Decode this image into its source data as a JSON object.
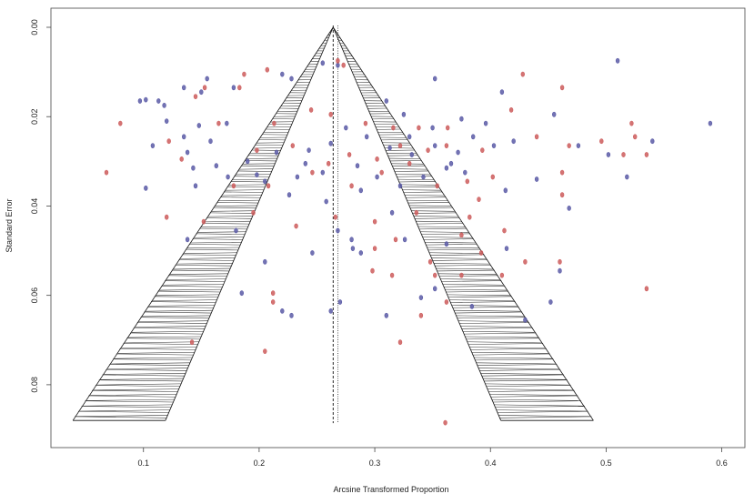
{
  "chart_data": {
    "type": "scatter",
    "subtype": "funnel",
    "title": "",
    "xlabel": "Arcsine Transformed Proportion",
    "ylabel": "Standard Error",
    "xlim": [
      0.02,
      0.62
    ],
    "ylim": [
      0.0,
      0.09
    ],
    "y_reversed": true,
    "x_ticks": [
      "0.1",
      "0.2",
      "0.3",
      "0.4",
      "0.5",
      "0.6"
    ],
    "y_ticks": [
      "0.00",
      "0.02",
      "0.04",
      "0.06",
      "0.08"
    ],
    "grid": false,
    "legend": "none",
    "reference_lines": {
      "pooled_estimate_dashed": 0.264,
      "pooled_estimate_dotted": 0.268
    },
    "funnel": {
      "apex_x": 0.264,
      "apex_se": 0.0,
      "base_se": 0.088,
      "inner_half_width": 0.145,
      "outer_half_width": 0.225
    },
    "colors": {
      "blue": "#5a5aa6",
      "red": "#cd5c5c",
      "funnel": "#111111"
    },
    "series": [
      {
        "color": "blue",
        "points": [
          [
            0.51,
            0.0075
          ],
          [
            0.097,
            0.0165
          ],
          [
            0.102,
            0.0162
          ],
          [
            0.113,
            0.0165
          ],
          [
            0.118,
            0.0175
          ],
          [
            0.135,
            0.0135
          ],
          [
            0.15,
            0.0145
          ],
          [
            0.155,
            0.0115
          ],
          [
            0.178,
            0.0135
          ],
          [
            0.22,
            0.0105
          ],
          [
            0.228,
            0.0115
          ],
          [
            0.255,
            0.008
          ],
          [
            0.268,
            0.0085
          ],
          [
            0.352,
            0.0115
          ],
          [
            0.41,
            0.0145
          ],
          [
            0.12,
            0.021
          ],
          [
            0.135,
            0.0245
          ],
          [
            0.148,
            0.022
          ],
          [
            0.158,
            0.0255
          ],
          [
            0.172,
            0.0215
          ],
          [
            0.31,
            0.0165
          ],
          [
            0.325,
            0.0195
          ],
          [
            0.35,
            0.0225
          ],
          [
            0.375,
            0.0205
          ],
          [
            0.396,
            0.0215
          ],
          [
            0.455,
            0.0195
          ],
          [
            0.59,
            0.0215
          ],
          [
            0.108,
            0.0265
          ],
          [
            0.138,
            0.028
          ],
          [
            0.163,
            0.031
          ],
          [
            0.19,
            0.03
          ],
          [
            0.198,
            0.033
          ],
          [
            0.215,
            0.028
          ],
          [
            0.243,
            0.0275
          ],
          [
            0.262,
            0.026
          ],
          [
            0.275,
            0.0225
          ],
          [
            0.293,
            0.0245
          ],
          [
            0.313,
            0.027
          ],
          [
            0.332,
            0.0285
          ],
          [
            0.352,
            0.0265
          ],
          [
            0.372,
            0.028
          ],
          [
            0.385,
            0.0245
          ],
          [
            0.403,
            0.0265
          ],
          [
            0.42,
            0.0255
          ],
          [
            0.378,
            0.0325
          ],
          [
            0.44,
            0.034
          ],
          [
            0.476,
            0.0265
          ],
          [
            0.502,
            0.0285
          ],
          [
            0.54,
            0.0255
          ],
          [
            0.518,
            0.0335
          ],
          [
            0.143,
            0.0315
          ],
          [
            0.173,
            0.0335
          ],
          [
            0.205,
            0.0345
          ],
          [
            0.233,
            0.0335
          ],
          [
            0.255,
            0.0325
          ],
          [
            0.285,
            0.031
          ],
          [
            0.302,
            0.0335
          ],
          [
            0.322,
            0.0355
          ],
          [
            0.342,
            0.0335
          ],
          [
            0.362,
            0.0315
          ],
          [
            0.102,
            0.036
          ],
          [
            0.226,
            0.0375
          ],
          [
            0.288,
            0.0365
          ],
          [
            0.413,
            0.0365
          ],
          [
            0.468,
            0.0405
          ],
          [
            0.258,
            0.039
          ],
          [
            0.138,
            0.0475
          ],
          [
            0.18,
            0.0455
          ],
          [
            0.205,
            0.0525
          ],
          [
            0.246,
            0.0505
          ],
          [
            0.281,
            0.0495
          ],
          [
            0.288,
            0.0505
          ],
          [
            0.326,
            0.0475
          ],
          [
            0.362,
            0.0485
          ],
          [
            0.414,
            0.0495
          ],
          [
            0.46,
            0.0545
          ],
          [
            0.185,
            0.0595
          ],
          [
            0.22,
            0.0635
          ],
          [
            0.228,
            0.0645
          ],
          [
            0.262,
            0.0635
          ],
          [
            0.27,
            0.0615
          ],
          [
            0.31,
            0.0645
          ],
          [
            0.34,
            0.0605
          ],
          [
            0.352,
            0.0585
          ],
          [
            0.384,
            0.0625
          ],
          [
            0.452,
            0.0615
          ],
          [
            0.43,
            0.0655
          ],
          [
            0.28,
            0.0475
          ],
          [
            0.268,
            0.0455
          ],
          [
            0.315,
            0.0415
          ],
          [
            0.145,
            0.0355
          ],
          [
            0.24,
            0.0305
          ],
          [
            0.33,
            0.0245
          ],
          [
            0.366,
            0.0305
          ]
        ]
      },
      {
        "color": "red",
        "points": [
          [
            0.428,
            0.0105
          ],
          [
            0.268,
            0.0075
          ],
          [
            0.273,
            0.0085
          ],
          [
            0.08,
            0.0215
          ],
          [
            0.145,
            0.0155
          ],
          [
            0.153,
            0.0135
          ],
          [
            0.165,
            0.0215
          ],
          [
            0.187,
            0.0105
          ],
          [
            0.207,
            0.0095
          ],
          [
            0.183,
            0.0135
          ],
          [
            0.245,
            0.0185
          ],
          [
            0.213,
            0.0215
          ],
          [
            0.229,
            0.0265
          ],
          [
            0.292,
            0.0215
          ],
          [
            0.316,
            0.0225
          ],
          [
            0.338,
            0.0225
          ],
          [
            0.363,
            0.0225
          ],
          [
            0.418,
            0.0185
          ],
          [
            0.462,
            0.0135
          ],
          [
            0.522,
            0.0215
          ],
          [
            0.068,
            0.0325
          ],
          [
            0.122,
            0.0255
          ],
          [
            0.133,
            0.0295
          ],
          [
            0.198,
            0.0275
          ],
          [
            0.26,
            0.0305
          ],
          [
            0.278,
            0.0285
          ],
          [
            0.302,
            0.0295
          ],
          [
            0.322,
            0.0265
          ],
          [
            0.346,
            0.0275
          ],
          [
            0.362,
            0.0265
          ],
          [
            0.393,
            0.0275
          ],
          [
            0.44,
            0.0245
          ],
          [
            0.468,
            0.0265
          ],
          [
            0.515,
            0.0285
          ],
          [
            0.525,
            0.0245
          ],
          [
            0.535,
            0.0285
          ],
          [
            0.496,
            0.0255
          ],
          [
            0.462,
            0.0325
          ],
          [
            0.178,
            0.0355
          ],
          [
            0.208,
            0.0355
          ],
          [
            0.246,
            0.0325
          ],
          [
            0.28,
            0.0355
          ],
          [
            0.306,
            0.0325
          ],
          [
            0.33,
            0.0305
          ],
          [
            0.354,
            0.0355
          ],
          [
            0.38,
            0.0345
          ],
          [
            0.402,
            0.0335
          ],
          [
            0.462,
            0.0375
          ],
          [
            0.12,
            0.0425
          ],
          [
            0.152,
            0.0435
          ],
          [
            0.195,
            0.0415
          ],
          [
            0.232,
            0.0445
          ],
          [
            0.266,
            0.0425
          ],
          [
            0.3,
            0.0435
          ],
          [
            0.336,
            0.0415
          ],
          [
            0.382,
            0.0425
          ],
          [
            0.412,
            0.0455
          ],
          [
            0.3,
            0.0495
          ],
          [
            0.318,
            0.0475
          ],
          [
            0.348,
            0.0525
          ],
          [
            0.392,
            0.0505
          ],
          [
            0.43,
            0.0525
          ],
          [
            0.46,
            0.0525
          ],
          [
            0.298,
            0.0545
          ],
          [
            0.315,
            0.0555
          ],
          [
            0.352,
            0.0555
          ],
          [
            0.375,
            0.0555
          ],
          [
            0.41,
            0.0555
          ],
          [
            0.212,
            0.0595
          ],
          [
            0.212,
            0.0615
          ],
          [
            0.34,
            0.0645
          ],
          [
            0.362,
            0.0615
          ],
          [
            0.535,
            0.0585
          ],
          [
            0.142,
            0.0705
          ],
          [
            0.322,
            0.0705
          ],
          [
            0.205,
            0.0725
          ],
          [
            0.361,
            0.0885
          ],
          [
            0.375,
            0.0465
          ],
          [
            0.39,
            0.0385
          ],
          [
            0.262,
            0.0195
          ]
        ]
      }
    ]
  }
}
